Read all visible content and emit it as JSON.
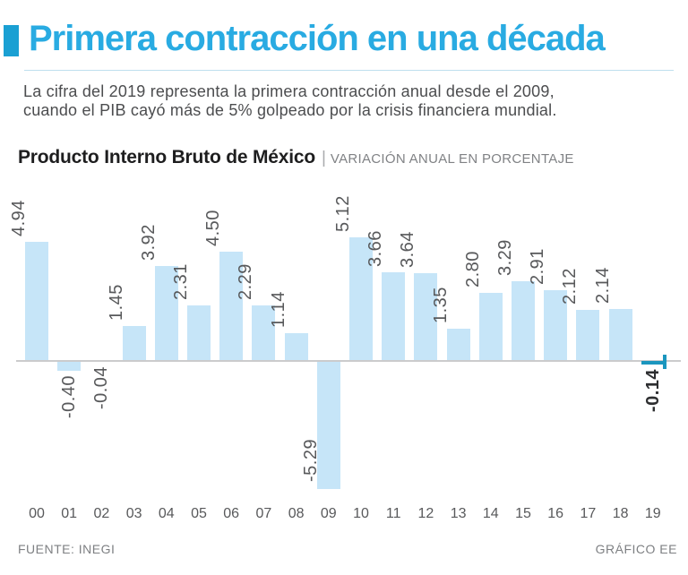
{
  "page": {
    "background": "#FFFFFF"
  },
  "header": {
    "accent_color": "#1AA0D3",
    "title": "Primera contracción en una década",
    "title_color": "#29ABE2",
    "description": "La cifra del 2019 representa la primera contracción anual desde el 2009,\ncuando el PIB cayó más de 5% golpeado por la crisis financiera mundial."
  },
  "chart_header": {
    "title": "Producto Interno Bruto de México",
    "separator": "|",
    "subtitle": "VARIACIÓN ANUAL EN PORCENTAJE"
  },
  "chart_data": {
    "type": "bar",
    "title": "Producto Interno Bruto de México",
    "ylabel": "Variación anual en porcentaje",
    "categories": [
      "00",
      "01",
      "02",
      "03",
      "04",
      "05",
      "06",
      "07",
      "08",
      "09",
      "10",
      "11",
      "12",
      "13",
      "14",
      "15",
      "16",
      "17",
      "18",
      "19"
    ],
    "values": [
      4.94,
      -0.4,
      -0.04,
      1.45,
      3.92,
      2.31,
      4.5,
      2.29,
      1.14,
      -5.29,
      5.12,
      3.66,
      3.64,
      1.35,
      2.8,
      3.29,
      2.91,
      2.12,
      2.14,
      -0.14
    ],
    "labels": [
      "4.94",
      "-0.40",
      "-0.04",
      "1.45",
      "3.92",
      "2.31",
      "4.50",
      "2.29",
      "1.14",
      "-5.29",
      "5.12",
      "3.66",
      "3.64",
      "1.35",
      "2.80",
      "3.29",
      "2.91",
      "2.12",
      "2.14",
      "-0.14"
    ],
    "bar_color": "#C6E5F8",
    "highlight_color": "#1B96BE",
    "highlight_index": 19,
    "axis_color": "#CBCBCC",
    "value_label_color": "#58595B",
    "highlight_label_color": "#2D2E30",
    "ylim": [
      -6,
      6
    ],
    "grid": false,
    "legend": false
  },
  "footer": {
    "source": "FUENTE: INEGI",
    "credit": "GRÁFICO EE"
  }
}
